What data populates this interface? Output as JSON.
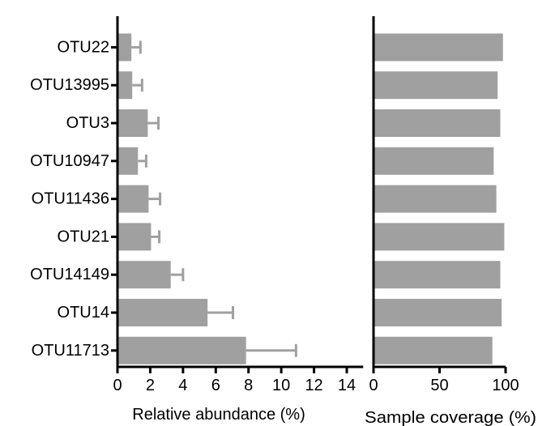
{
  "chart_data": [
    {
      "type": "bar",
      "orientation": "horizontal",
      "categories": [
        "OTU22",
        "OTU13995",
        "OTU3",
        "OTU10947",
        "OTU11436",
        "OTU21",
        "OTU14149",
        "OTU14",
        "OTU11713"
      ],
      "values": [
        0.85,
        0.9,
        1.85,
        1.25,
        1.9,
        2.05,
        3.25,
        5.5,
        7.85
      ],
      "errors": [
        0.55,
        0.6,
        0.65,
        0.5,
        0.7,
        0.5,
        0.75,
        1.55,
        3.05
      ],
      "xlabel": "Relative abundance (%)",
      "xlim": [
        0,
        15
      ],
      "xticks": [
        0,
        2,
        4,
        6,
        8,
        10,
        12,
        14
      ],
      "bar_color": "#a0a0a0",
      "grid": false
    },
    {
      "type": "bar",
      "orientation": "horizontal",
      "categories": [
        "OTU22",
        "OTU13995",
        "OTU3",
        "OTU10947",
        "OTU11436",
        "OTU21",
        "OTU14149",
        "OTU14",
        "OTU11713"
      ],
      "values": [
        98,
        94,
        96,
        91,
        93,
        99,
        96,
        97,
        90
      ],
      "xlabel": "Sample coverage (%)",
      "xlim": [
        0,
        100
      ],
      "xticks": [
        0,
        50,
        100
      ],
      "bar_color": "#a0a0a0",
      "grid": false
    }
  ]
}
